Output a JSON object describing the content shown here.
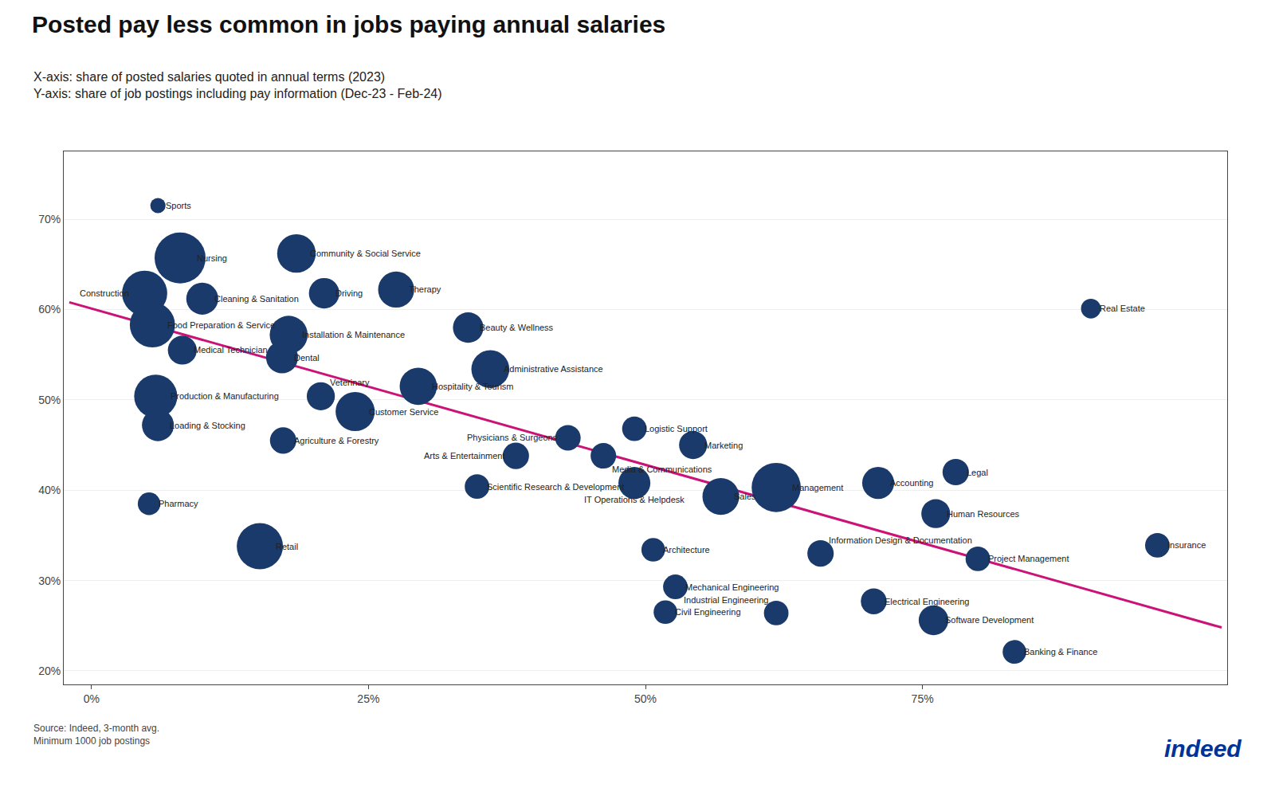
{
  "chart_data": {
    "type": "scatter",
    "title": "Posted pay less common in jobs paying annual salaries",
    "subtitle": [
      "X-axis: share of posted salaries quoted in annual terms (2023)",
      "Y-axis: share of job postings including pay information (Dec-23 - Feb-24)"
    ],
    "source": "Source: Indeed, 3-month avg.\nMinimum 1000 job postings",
    "logo": {
      "text": "indeed",
      "color": "#003399"
    },
    "color": "#1a3a6b",
    "labels": [
      "Sports",
      "Nursing",
      "Community & Social Service",
      "Construction",
      "Cleaning & Sanitation",
      "Driving",
      "Therapy",
      "Food Preparation & Service",
      "Beauty & Wellness",
      "Installation & Maintenance",
      "Medical Technician",
      "Dental",
      "Administrative Assistance",
      "Hospitality & Tourism",
      "Production & Manufacturing",
      "Veterinary",
      "Customer Service",
      "Loading & Stocking",
      "Agriculture & Forestry",
      "Physicians & Surgeons",
      "Logistic Support",
      "Arts & Entertainment",
      "Media & Communications",
      "Marketing",
      "Scientific Research & Development",
      "IT Operations & Helpdesk",
      "Accounting",
      "Legal",
      "Management",
      "Pharmacy",
      "Sales",
      "Human Resources",
      "Retail",
      "Architecture",
      "Information Design & Documentation",
      "Project Management",
      "Mechanical Engineering",
      "Electrical Engineering",
      "Civil Engineering",
      "Industrial Engineering",
      "Software Development",
      "Banking & Finance",
      "Real Estate",
      "Insurance"
    ],
    "x": [
      0.06,
      0.08,
      0.185,
      0.048,
      0.1,
      0.21,
      0.275,
      0.055,
      0.34,
      0.178,
      0.082,
      0.172,
      0.36,
      0.295,
      0.058,
      0.207,
      0.238,
      0.06,
      0.173,
      0.43,
      0.49,
      0.383,
      0.462,
      0.543,
      0.348,
      0.49,
      0.71,
      0.78,
      0.618,
      0.052,
      0.568,
      0.762,
      0.152,
      0.507,
      0.658,
      0.8,
      0.527,
      0.706,
      0.518,
      0.618,
      0.76,
      0.833,
      0.902,
      0.962
    ],
    "values": [
      0.715,
      0.657,
      0.662,
      0.618,
      0.612,
      0.618,
      0.622,
      0.583,
      0.58,
      0.572,
      0.555,
      0.547,
      0.534,
      0.515,
      0.504,
      0.504,
      0.487,
      0.472,
      0.455,
      0.458,
      0.468,
      0.438,
      0.438,
      0.45,
      0.404,
      0.408,
      0.408,
      0.42,
      0.403,
      0.385,
      0.393,
      0.374,
      0.338,
      0.334,
      0.33,
      0.324,
      0.293,
      0.277,
      0.265,
      0.264,
      0.256,
      0.221,
      0.601,
      0.339
    ],
    "sizes": [
      25,
      280,
      160,
      220,
      110,
      100,
      140,
      220,
      100,
      155,
      90,
      110,
      155,
      150,
      200,
      85,
      165,
      110,
      75,
      70,
      65,
      75,
      70,
      85,
      65,
      110,
      110,
      75,
      260,
      55,
      145,
      90,
      230,
      60,
      75,
      65,
      65,
      72,
      60,
      65,
      95,
      60,
      42,
      65
    ],
    "trendline": {
      "x": [
        -0.02,
        1.02
      ],
      "values": [
        0.608,
        0.248
      ],
      "color": "#cc1177"
    },
    "xlim": [
      -0.025,
      1.025
    ],
    "ylim": [
      0.185,
      0.775
    ],
    "xticks": [
      {
        "value": 0.0,
        "label": "0%"
      },
      {
        "value": 0.25,
        "label": "25%"
      },
      {
        "value": 0.5,
        "label": "50%"
      },
      {
        "value": 0.75,
        "label": "75%"
      }
    ],
    "yticks": [
      {
        "value": 0.2,
        "label": "20%"
      },
      {
        "value": 0.3,
        "label": "30%"
      },
      {
        "value": 0.4,
        "label": "40%"
      },
      {
        "value": 0.5,
        "label": "50%"
      },
      {
        "value": 0.6,
        "label": "60%"
      },
      {
        "value": 0.7,
        "label": "70%"
      }
    ],
    "grid": "y"
  }
}
